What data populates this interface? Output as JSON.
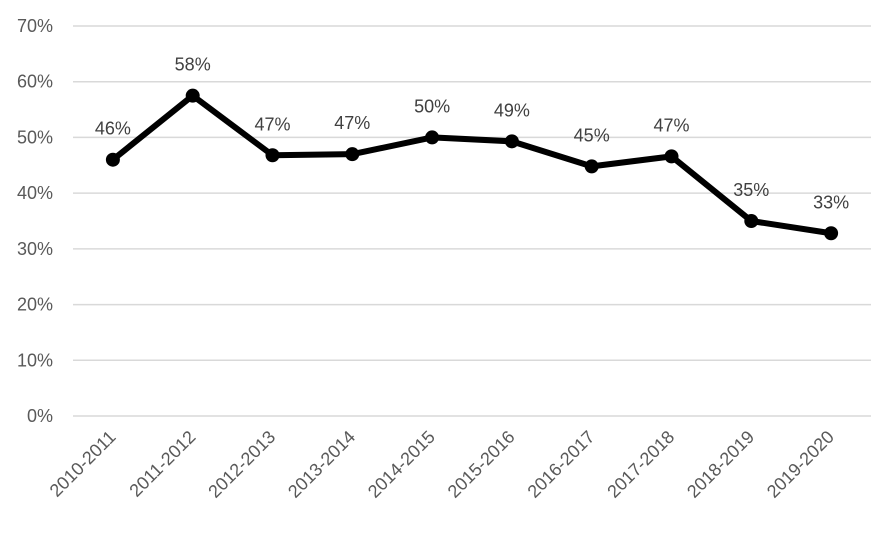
{
  "chart_data": {
    "type": "line",
    "title": "",
    "xlabel": "",
    "ylabel": "",
    "categories": [
      "2010-2011",
      "2011-2012",
      "2012-2013",
      "2013-2014",
      "2014-2015",
      "2015-2016",
      "2016-2017",
      "2017-2018",
      "2018-2019",
      "2019-2020"
    ],
    "series": [
      {
        "values": [
          46,
          57.5,
          46.8,
          47,
          50,
          49.3,
          44.8,
          46.6,
          35,
          32.8
        ],
        "labels": [
          "46%",
          "58%",
          "47%",
          "47%",
          "50%",
          "49%",
          "45%",
          "47%",
          "35%",
          "33%"
        ],
        "color": "#000000"
      }
    ],
    "ylim": [
      0,
      70
    ],
    "yticks": [
      0,
      10,
      20,
      30,
      40,
      50,
      60,
      70
    ],
    "ytick_labels": [
      "0%",
      "10%",
      "20%",
      "30%",
      "40%",
      "50%",
      "60%",
      "70%"
    ],
    "grid": true,
    "legend": "none",
    "colors": {
      "line": "#000000",
      "grid": "#d9d9d9"
    }
  }
}
